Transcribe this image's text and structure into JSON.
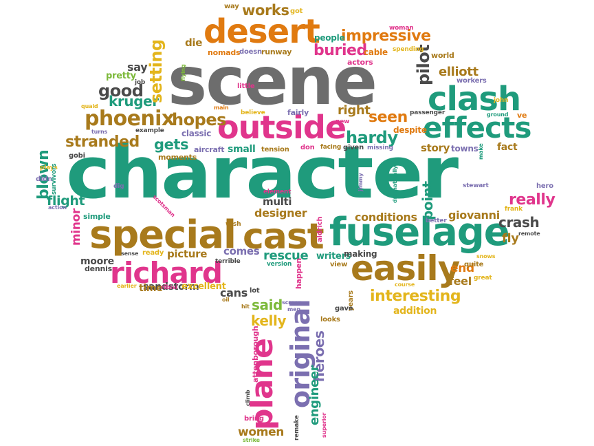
{
  "colors": {
    "gray": "#6d6d6d",
    "teal": "#1f9b7c",
    "brown": "#a87a1c",
    "orange": "#e07a10",
    "pink": "#e0358c",
    "violet": "#7b6fb0",
    "yellow": "#e3b51c",
    "green": "#7cb93a"
  },
  "words": {
    "character": "character",
    "scene": "scene",
    "clash": "clash",
    "effects": "effects",
    "outside": "outside",
    "desert": "desert",
    "special": "special",
    "cast": "cast",
    "fuselage": "fuselage",
    "easily": "easily",
    "richard": "richard",
    "plane": "plane",
    "original": "original",
    "phoenix": "phoenix",
    "impressive": "impressive",
    "works": "works",
    "hardy": "hardy",
    "stranded": "stranded",
    "blown": "blown",
    "flight": "flight",
    "gets": "gets",
    "good": "good",
    "kruger": "kruger",
    "hopes": "hopes",
    "setting": "setting",
    "buried": "buried",
    "pilot": "pilot",
    "elliott": "elliott",
    "seen": "seen",
    "right": "right",
    "really": "really",
    "crash": "crash",
    "fly": "fly",
    "point": "point",
    "giovanni": "giovanni",
    "conditions": "conditions",
    "designer": "designer",
    "multi": "multi",
    "rescue": "rescue",
    "interesting": "interesting",
    "kelly": "kelly",
    "said": "said",
    "cans": "cans",
    "heroes": "heroes",
    "engineer": "engineer",
    "women": "women",
    "end": "end",
    "feel": "feel",
    "sandstorm": "sandstorm",
    "minor": "minor",
    "moore": "moore",
    "picture": "picture",
    "comes": "comes",
    "time": "time",
    "excellent": "excellent",
    "writers": "writers",
    "making": "making",
    "addition": "addition",
    "story": "story",
    "towns": "towns",
    "fact": "fact",
    "despite": "despite",
    "small": "small",
    "aircraft": "aircraft",
    "classic": "classic",
    "moments": "moments",
    "say": "say",
    "pretty": "pretty",
    "die": "die",
    "nomads": "nomads",
    "doesn": "doesn",
    "runway": "runway",
    "people": "people",
    "cable": "cable",
    "actors": "actors",
    "spending": "spending",
    "woman": "woman",
    "world": "world",
    "workers": "workers",
    "john": "john",
    "ve": "ve",
    "got": "got",
    "way": "way",
    "little": "little",
    "fairly": "fairly",
    "believe": "believe",
    "main": "main",
    "passenger": "passenger",
    "ground": "ground",
    "new": "new",
    "tension": "tension",
    "don": "don",
    "facing": "facing",
    "given": "given",
    "missing": "missing",
    "make": "make",
    "stewart": "stewart",
    "hero": "hero",
    "frank": "frank",
    "remote": "remote",
    "better": "better",
    "quite": "quite",
    "great": "great",
    "course": "course",
    "snows": "snows",
    "years": "years",
    "gave": "gave",
    "looks": "looks",
    "view": "view",
    "version": "version",
    "happen": "happen",
    "aldrich": "aldrich",
    "element": "element",
    "dramatically": "dramatically",
    "jimmy": "jimmy",
    "wish": "wish",
    "terrible": "terrible",
    "ready": "ready",
    "ribisi": "ribisi",
    "lot": "lot",
    "screen": "screen",
    "men": "men",
    "hit": "hit",
    "oil": "oil",
    "attenborough": "attenborough",
    "climb": "climb",
    "bring": "bring",
    "strike": "strike",
    "remake": "remake",
    "superior": "superior",
    "dennis": "dennis",
    "earlier": "earlier",
    "sense": "sense",
    "simple": "simple",
    "action": "action",
    "dig": "dig",
    "plays": "plays",
    "didn": "didn",
    "survivors": "survivors",
    "gobi": "gobi",
    "turns": "turns",
    "example": "example",
    "quaid": "quaid",
    "job": "job",
    "flying": "flying",
    "scotsman": "scotsman"
  }
}
